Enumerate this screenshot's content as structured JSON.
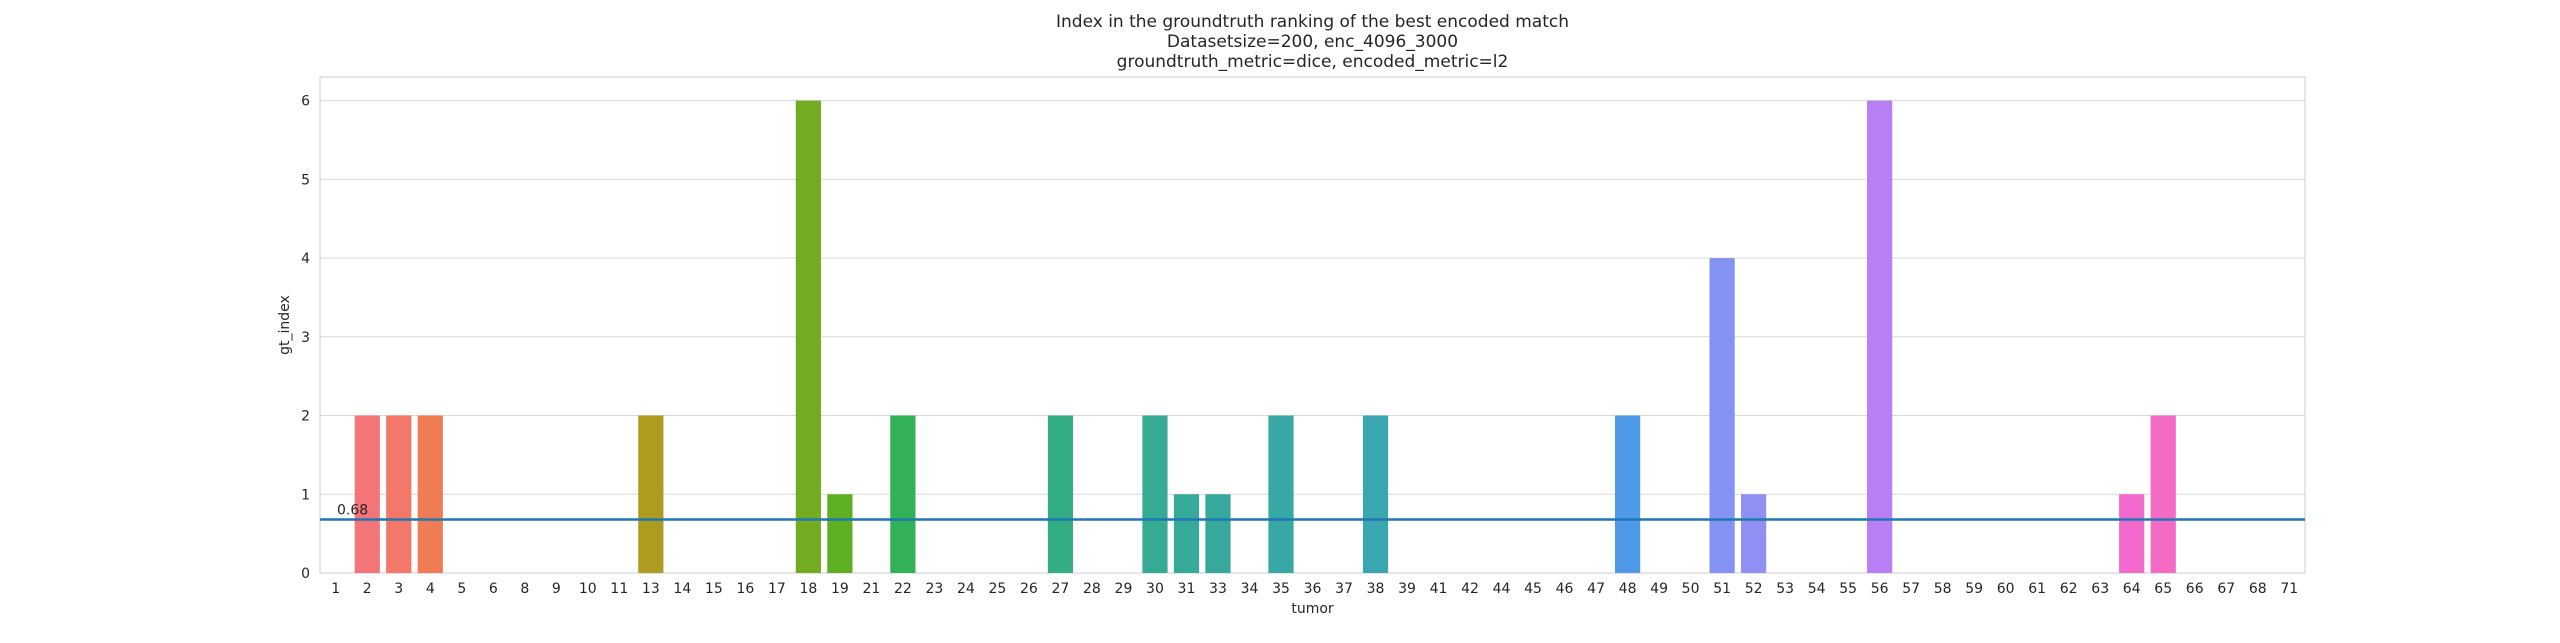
{
  "chart_data": {
    "type": "bar",
    "title_lines": [
      "Index in the groundtruth ranking of the best encoded match",
      "Datasetsize=200, enc_4096_3000",
      "groundtruth_metric=dice, encoded_metric=l2"
    ],
    "xlabel": "tumor",
    "ylabel": "gt_index",
    "ylim": [
      0,
      6.3
    ],
    "yticks": [
      0,
      1,
      2,
      3,
      4,
      5,
      6
    ],
    "grid": true,
    "legend": "none",
    "categories": [
      "1",
      "2",
      "3",
      "4",
      "5",
      "6",
      "8",
      "9",
      "10",
      "11",
      "13",
      "14",
      "15",
      "16",
      "17",
      "18",
      "19",
      "21",
      "22",
      "23",
      "24",
      "25",
      "26",
      "27",
      "28",
      "29",
      "30",
      "31",
      "33",
      "34",
      "35",
      "36",
      "37",
      "38",
      "39",
      "41",
      "42",
      "44",
      "45",
      "46",
      "47",
      "48",
      "49",
      "50",
      "51",
      "52",
      "53",
      "54",
      "55",
      "56",
      "57",
      "58",
      "59",
      "60",
      "61",
      "62",
      "63",
      "64",
      "65",
      "66",
      "67",
      "68",
      "71"
    ],
    "values": [
      0,
      2,
      2,
      2,
      0,
      0,
      0,
      0,
      0,
      0,
      2,
      0,
      0,
      0,
      0,
      6,
      1,
      0,
      2,
      0,
      0,
      0,
      0,
      2,
      0,
      0,
      2,
      1,
      1,
      0,
      2,
      0,
      0,
      2,
      0,
      0,
      0,
      0,
      0,
      0,
      0,
      2,
      0,
      0,
      4,
      1,
      0,
      0,
      0,
      6,
      0,
      0,
      0,
      0,
      0,
      0,
      0,
      1,
      2,
      0,
      0,
      0,
      0
    ],
    "mean_line": {
      "value": 0.68,
      "label": "0.68",
      "color": "#1f77b4"
    },
    "colors": [
      "#f77189",
      "#f47578",
      "#f37868",
      "#f07c56",
      "#ed7f3f",
      "#e6841f",
      "#d98b1e",
      "#cd901f",
      "#c3941f",
      "#b99820",
      "#ae9c20",
      "#a59f20",
      "#9ba220",
      "#90a521",
      "#84a921",
      "#74ac21",
      "#5eb022",
      "#3bb423",
      "#32b159",
      "#32b167",
      "#33b071",
      "#33af79",
      "#34ae80",
      "#34ad86",
      "#35ac8b",
      "#35ac90",
      "#36ab94",
      "#36aa98",
      "#37a99c",
      "#37a9a0",
      "#38a8a4",
      "#38a7a7",
      "#39a6ab",
      "#39a6b0",
      "#3aa5b4",
      "#3aa4b9",
      "#3ba3be",
      "#3ca2c4",
      "#3ca1cb",
      "#3d9fd3",
      "#3f9ddd",
      "#4e9ae9",
      "#6197f4",
      "#7595f4",
      "#8492f4",
      "#8f8ff4",
      "#9a8bf4",
      "#a487f4",
      "#ae83f4",
      "#b87ef4",
      "#c379f4",
      "#ce71f4",
      "#da69f4",
      "#e561f2",
      "#ec5ee7",
      "#ef63dd",
      "#f066d5",
      "#f269cd",
      "#f36bc5",
      "#f46ebd",
      "#f570b5",
      "#f672ab",
      "#f774a1"
    ]
  }
}
